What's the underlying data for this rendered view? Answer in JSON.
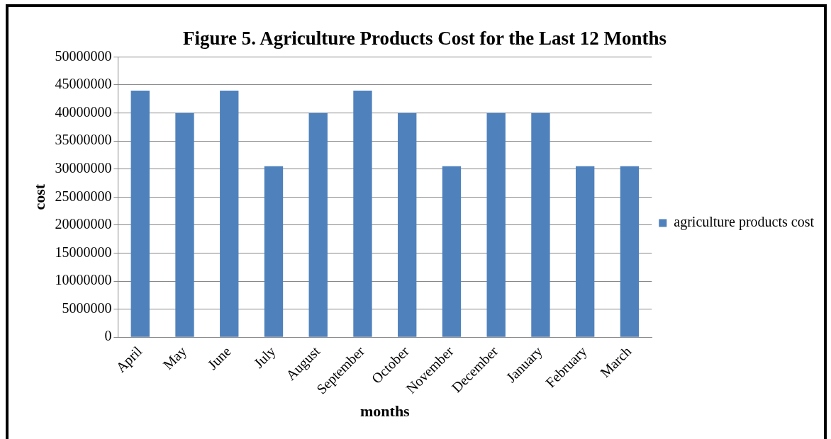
{
  "chart_data": {
    "type": "bar",
    "title": "Figure 5. Agriculture Products Cost for the Last 12 Months",
    "xlabel": "months",
    "ylabel": "cost",
    "categories": [
      "April",
      "May",
      "June",
      "July",
      "August",
      "September",
      "October",
      "November",
      "December",
      "January",
      "February",
      "March"
    ],
    "series": [
      {
        "name": "agriculture products cost",
        "color": "#4f81bd",
        "values": [
          44000000,
          40000000,
          44000000,
          30500000,
          40000000,
          44000000,
          40000000,
          30500000,
          40000000,
          40000000,
          30500000,
          30500000
        ]
      }
    ],
    "ylim": [
      0,
      50000000
    ],
    "yticks": [
      0,
      5000000,
      10000000,
      15000000,
      20000000,
      25000000,
      30000000,
      35000000,
      40000000,
      45000000,
      50000000
    ],
    "grid": "y",
    "legend": "right"
  }
}
